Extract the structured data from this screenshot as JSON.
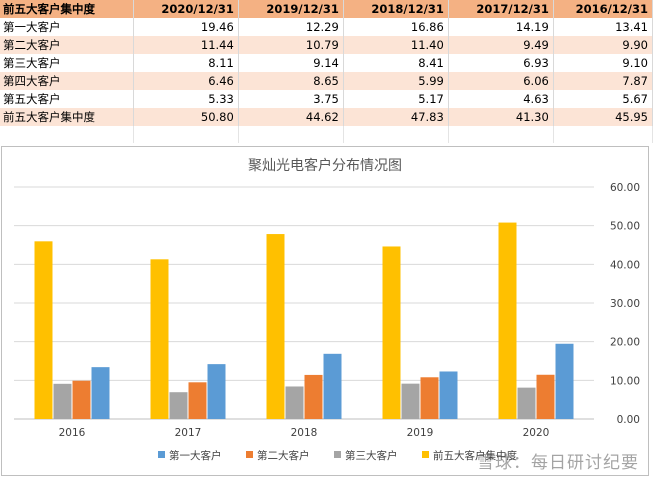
{
  "table": {
    "header": [
      "前五大客户集中度",
      "2020/12/31",
      "2019/12/31",
      "2018/12/31",
      "2017/12/31",
      "2016/12/31"
    ],
    "rows": [
      {
        "label": "第一大客户",
        "values": [
          "19.46",
          "12.29",
          "16.86",
          "14.19",
          "13.41"
        ]
      },
      {
        "label": "第二大客户",
        "values": [
          "11.44",
          "10.79",
          "11.40",
          "9.49",
          "9.90"
        ]
      },
      {
        "label": "第三大客户",
        "values": [
          "8.11",
          "9.14",
          "8.41",
          "6.93",
          "9.10"
        ]
      },
      {
        "label": "第四大客户",
        "values": [
          "6.46",
          "8.65",
          "5.99",
          "6.06",
          "7.87"
        ]
      },
      {
        "label": "第五大客户",
        "values": [
          "5.33",
          "3.75",
          "5.17",
          "4.63",
          "5.67"
        ]
      },
      {
        "label": "前五大客户集中度",
        "values": [
          "50.80",
          "44.62",
          "47.83",
          "41.30",
          "45.95"
        ]
      }
    ]
  },
  "chart_data": {
    "type": "bar",
    "title": "聚灿光电客户分布情况图",
    "categories": [
      "2016",
      "2017",
      "2018",
      "2019",
      "2020"
    ],
    "series": [
      {
        "name": "前五大客户集中度",
        "color": "#ffc000",
        "values": [
          45.95,
          41.3,
          47.83,
          44.62,
          50.8
        ]
      },
      {
        "name": "第三大客户",
        "color": "#a5a5a5",
        "values": [
          9.1,
          6.93,
          8.41,
          9.14,
          8.11
        ]
      },
      {
        "name": "第二大客户",
        "color": "#ed7d31",
        "values": [
          9.9,
          9.49,
          11.4,
          10.79,
          11.44
        ]
      },
      {
        "name": "第一大客户",
        "color": "#5b9bd5",
        "values": [
          13.41,
          14.19,
          16.86,
          12.29,
          19.46
        ]
      }
    ],
    "legend_order": [
      "第一大客户",
      "第二大客户",
      "第三大客户",
      "前五大客户集中度"
    ],
    "y_ticks": [
      "0.00",
      "10.00",
      "20.00",
      "30.00",
      "40.00",
      "50.00",
      "60.00"
    ],
    "ylim": [
      0,
      60
    ],
    "y_axis_position": "right",
    "grid": true,
    "legend_position": "bottom"
  },
  "watermark": "雪球：每日研讨纪要"
}
